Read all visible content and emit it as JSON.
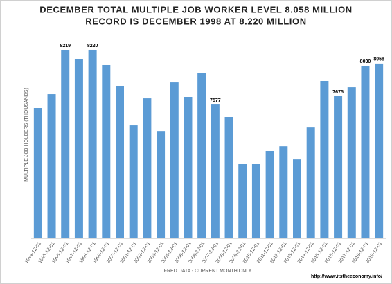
{
  "chart_data": {
    "type": "bar",
    "title": [
      "DECEMBER TOTAL MULTIPLE JOB WORKER LEVEL 8.058 MILLION",
      "RECORD IS DECEMBER 1998 AT  8.220 MILLION"
    ],
    "y_axis_label": "MULTIPLE JOB HOLDERS (THOUSANDS)",
    "x_axis_label": "FRED DATA - CURRENT MONTH ONLY",
    "source": "http://www.itstheeconomy.info/",
    "categories": [
      "1994-12-01",
      "1995-12-01",
      "1996-12-01",
      "1997-12-01",
      "1998-12-01",
      "1999-12-01",
      "2000-12-01",
      "2001-12-01",
      "2002-12-01",
      "2003-12-01",
      "2004-12-01",
      "2005-12-01",
      "2006-12-01",
      "2007-12-01",
      "2008-12-01",
      "2009-12-01",
      "2010-12-01",
      "2011-12-01",
      "2012-12-01",
      "2013-12-01",
      "2014-12-01",
      "2015-12-01",
      "2016-12-01",
      "2017-12-01",
      "2018-12-01",
      "2019-12-01"
    ],
    "values": [
      7536,
      7699,
      8219,
      8114,
      8220,
      8041,
      7789,
      7333,
      7650,
      7259,
      7837,
      7666,
      7951,
      7577,
      7430,
      6877,
      6877,
      7032,
      7080,
      6934,
      7308,
      7854,
      7675,
      7780,
      8030,
      8058
    ],
    "value_labels": [
      null,
      null,
      "8219",
      null,
      "8220",
      null,
      null,
      null,
      null,
      null,
      null,
      null,
      null,
      "7577",
      null,
      null,
      null,
      null,
      null,
      null,
      null,
      null,
      "7675",
      null,
      "8030",
      "8058"
    ],
    "color": "#5b9bd5",
    "ylim": [
      6000,
      8480
    ],
    "yticks": [],
    "grid": false
  }
}
